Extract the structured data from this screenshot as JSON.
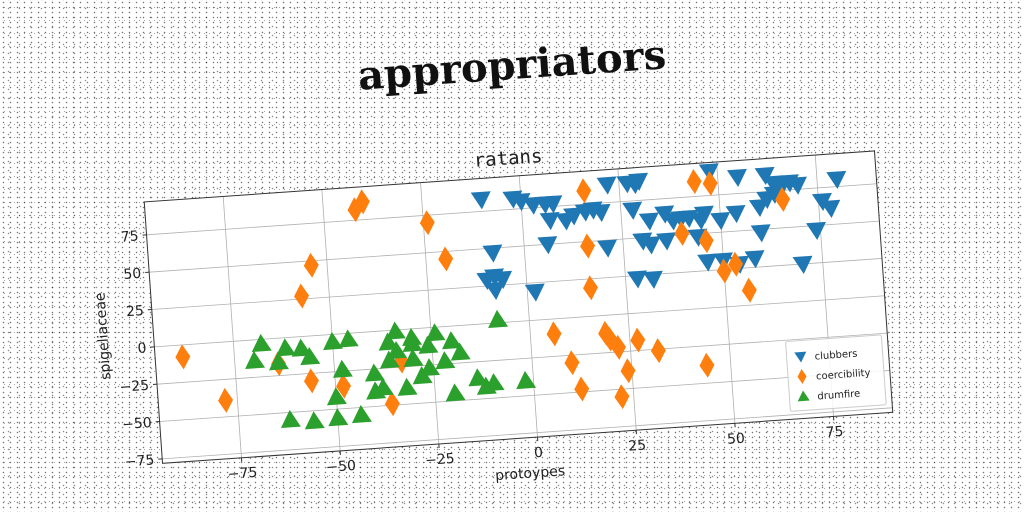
{
  "title": "appropriators",
  "chart_data": {
    "type": "scatter",
    "title": "ratans",
    "xlabel": "protoypes",
    "ylabel": "spigeliaceae",
    "xlim": [
      -95,
      90
    ],
    "ylim": [
      -78,
      97
    ],
    "xticks": [
      -75,
      -50,
      -25,
      0,
      25,
      50,
      75
    ],
    "yticks": [
      -75,
      -50,
      -25,
      0,
      25,
      50,
      75
    ],
    "grid": true,
    "legend_position": "lower-right",
    "series": [
      {
        "name": "clubbers",
        "color": "#1f77b4",
        "marker": "triangle-down",
        "points": [
          [
            -10,
            83
          ],
          [
            -2,
            82
          ],
          [
            0,
            80
          ],
          [
            3,
            77
          ],
          [
            6,
            77
          ],
          [
            8,
            77
          ],
          [
            22,
            87
          ],
          [
            27,
            87
          ],
          [
            29,
            86
          ],
          [
            30,
            88
          ],
          [
            48,
            91
          ],
          [
            55,
            86
          ],
          [
            62,
            86
          ],
          [
            64,
            80
          ],
          [
            68,
            80
          ],
          [
            80,
            80
          ],
          [
            7,
            66
          ],
          [
            11,
            65
          ],
          [
            13,
            68
          ],
          [
            16,
            70
          ],
          [
            18,
            71
          ],
          [
            20,
            69
          ],
          [
            28,
            69
          ],
          [
            32,
            61
          ],
          [
            36,
            65
          ],
          [
            38,
            60
          ],
          [
            40,
            61
          ],
          [
            42,
            61
          ],
          [
            45,
            59
          ],
          [
            46,
            63
          ],
          [
            50,
            58
          ],
          [
            54,
            62
          ],
          [
            60,
            65
          ],
          [
            62,
            70
          ],
          [
            64,
            73
          ],
          [
            66,
            78
          ],
          [
            70,
            78
          ],
          [
            76,
            66
          ],
          [
            78,
            61
          ],
          [
            -8,
            47
          ],
          [
            6,
            50
          ],
          [
            21,
            45
          ],
          [
            30,
            48
          ],
          [
            32,
            45
          ],
          [
            36,
            47
          ],
          [
            44,
            48
          ],
          [
            60,
            48
          ],
          [
            74,
            47
          ],
          [
            -10,
            29
          ],
          [
            -8,
            31
          ],
          [
            -6,
            29
          ],
          [
            -8,
            22
          ],
          [
            2,
            19
          ],
          [
            28,
            23
          ],
          [
            32,
            22
          ],
          [
            46,
            31
          ],
          [
            50,
            31
          ],
          [
            54,
            28
          ],
          [
            58,
            31
          ],
          [
            70,
            25
          ]
        ]
      },
      {
        "name": "coercibility",
        "color": "#ff7f0e",
        "marker": "diamond",
        "points": [
          [
            -42,
            82
          ],
          [
            -40,
            87
          ],
          [
            -24,
            70
          ],
          [
            -20,
            45
          ],
          [
            -54,
            47
          ],
          [
            -57,
            27
          ],
          [
            16,
            84
          ],
          [
            44,
            85
          ],
          [
            48,
            83
          ],
          [
            66,
            69
          ],
          [
            16,
            47
          ],
          [
            46,
            45
          ],
          [
            50,
            24
          ],
          [
            53,
            28
          ],
          [
            40,
            51
          ],
          [
            16,
            19
          ],
          [
            56,
            10
          ],
          [
            -88,
            -8
          ],
          [
            -64,
            -17
          ],
          [
            -56,
            -30
          ],
          [
            -48,
            -35
          ],
          [
            -36,
            -49
          ],
          [
            -33,
            -21
          ],
          [
            -78,
            -39
          ],
          [
            6,
            -10
          ],
          [
            10,
            -30
          ],
          [
            12,
            -48
          ],
          [
            19,
            -12
          ],
          [
            20,
            -16
          ],
          [
            22,
            -22
          ],
          [
            24,
            -38
          ],
          [
            22,
            -55
          ],
          [
            27,
            -18
          ],
          [
            32,
            -26
          ],
          [
            44,
            -38
          ]
        ]
      },
      {
        "name": "drumfire",
        "color": "#2ca02c",
        "marker": "triangle-up",
        "points": [
          [
            -68,
            -3
          ],
          [
            -62,
            -7
          ],
          [
            -58,
            -8
          ],
          [
            -50,
            -5
          ],
          [
            -46,
            -4
          ],
          [
            -36,
            -8
          ],
          [
            -34,
            -1
          ],
          [
            -30,
            -10
          ],
          [
            -34,
            -14
          ],
          [
            -26,
            -12
          ],
          [
            -24,
            -4
          ],
          [
            -18,
            -18
          ],
          [
            -22,
            -23
          ],
          [
            -26,
            -27
          ],
          [
            -30,
            -20
          ],
          [
            -36,
            -20
          ],
          [
            -40,
            -28
          ],
          [
            -48,
            -24
          ],
          [
            -56,
            -14
          ],
          [
            -64,
            -16
          ],
          [
            -70,
            -14
          ],
          [
            -38,
            -38
          ],
          [
            -32,
            -39
          ],
          [
            -40,
            -40
          ],
          [
            -20,
            -45
          ],
          [
            -14,
            -36
          ],
          [
            -10,
            -40
          ],
          [
            -12,
            -42
          ],
          [
            -2,
            -40
          ],
          [
            -28,
            -32
          ],
          [
            -50,
            -42
          ],
          [
            -62,
            -55
          ],
          [
            -56,
            -57
          ],
          [
            -50,
            -56
          ],
          [
            -44,
            -55
          ],
          [
            -8,
            2
          ],
          [
            -20,
            -10
          ],
          [
            -30,
            -6
          ]
        ]
      }
    ]
  }
}
